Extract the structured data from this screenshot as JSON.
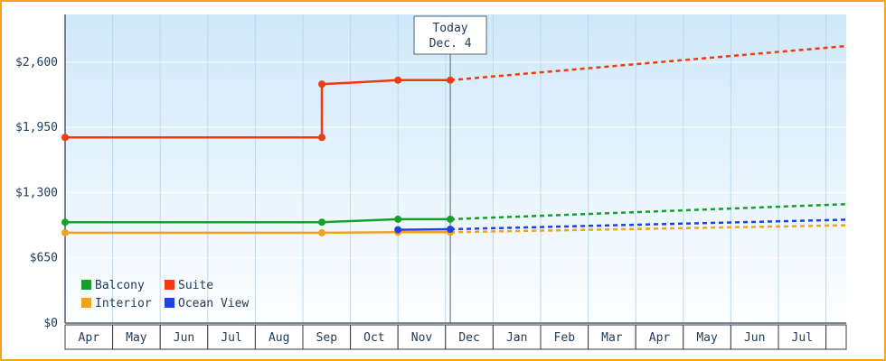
{
  "frame": {
    "border_color": "#f6a21f"
  },
  "chart_data": {
    "type": "line",
    "title": "",
    "xlabel": "",
    "ylabel": "",
    "x_months": [
      "Apr",
      "May",
      "Jun",
      "Jul",
      "Aug",
      "Sep",
      "Oct",
      "Nov",
      "Dec",
      "Jan",
      "Feb",
      "Mar",
      "Apr",
      "May",
      "Jun",
      "Jul"
    ],
    "y_ticks": [
      {
        "value": 0,
        "label": "$0"
      },
      {
        "value": 650,
        "label": "$650"
      },
      {
        "value": 1300,
        "label": "$1,300"
      },
      {
        "value": 1950,
        "label": "$1,950"
      },
      {
        "value": 2600,
        "label": "$2,600"
      }
    ],
    "ylim": [
      0,
      3075
    ],
    "grid": true,
    "today": {
      "line1": "Today",
      "line2": "Dec. 4",
      "month_u": 8.1
    },
    "series": [
      {
        "name": "Interior",
        "color": "#f2a31c",
        "solid": [
          [
            0,
            900
          ],
          [
            5.4,
            900
          ],
          [
            7,
            905
          ],
          [
            8.1,
            905
          ]
        ],
        "dashed": [
          [
            8.1,
            905
          ],
          [
            16.43,
            975
          ]
        ],
        "markers": [
          [
            0,
            900
          ],
          [
            5.4,
            900
          ],
          [
            7,
            905
          ],
          [
            8.1,
            905
          ]
        ]
      },
      {
        "name": "Ocean View",
        "color": "#1e41e6",
        "solid": [
          [
            7,
            930
          ],
          [
            8.1,
            935
          ]
        ],
        "dashed": [
          [
            8.1,
            935
          ],
          [
            16.43,
            1030
          ]
        ],
        "markers": [
          [
            7,
            930
          ],
          [
            8.1,
            935
          ]
        ]
      },
      {
        "name": "Balcony",
        "color": "#14a02a",
        "solid": [
          [
            0,
            1005
          ],
          [
            5.4,
            1005
          ],
          [
            7,
            1035
          ],
          [
            8.1,
            1035
          ]
        ],
        "dashed": [
          [
            8.1,
            1035
          ],
          [
            16.43,
            1185
          ]
        ],
        "markers": [
          [
            0,
            1005
          ],
          [
            5.4,
            1005
          ],
          [
            7,
            1035
          ],
          [
            8.1,
            1035
          ]
        ]
      },
      {
        "name": "Suite",
        "color": "#f23a10",
        "solid": [
          [
            0,
            1850
          ],
          [
            5.4,
            1850
          ],
          [
            5.4,
            2380
          ],
          [
            7,
            2420
          ],
          [
            8.1,
            2420
          ]
        ],
        "dashed": [
          [
            8.1,
            2420
          ],
          [
            16.43,
            2760
          ]
        ],
        "markers": [
          [
            0,
            1850
          ],
          [
            5.4,
            1850
          ],
          [
            5.4,
            2380
          ],
          [
            7,
            2420
          ],
          [
            8.1,
            2420
          ]
        ]
      }
    ],
    "legend": {
      "position": "bottom-left",
      "rows": [
        [
          "Balcony",
          "Suite"
        ],
        [
          "Interior",
          "Ocean View"
        ]
      ]
    },
    "colors": {
      "plot_bg_top": "#cfe8f9",
      "plot_bg_bottom": "#fdfeff",
      "grid_vertical": "#bcd9ec",
      "grid_horizontal": "#ffffff",
      "axis": "#4a5b6e",
      "text": "#223c55",
      "month_cell_border": "#333a44",
      "month_cell_fill": "#ffffff",
      "today_line": "#55606e"
    }
  }
}
